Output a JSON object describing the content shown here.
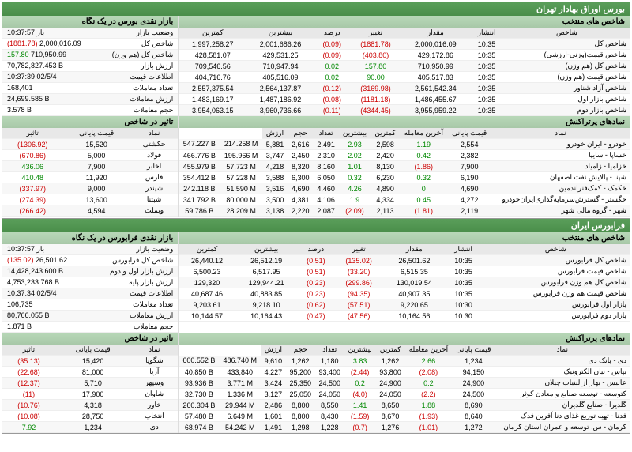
{
  "colors": {
    "headerBg": "#5a9e5a",
    "subHeaderBg": "#b8d8b8",
    "neg": "#cc0000",
    "pos": "#008800",
    "rowAlt": "#f7f7f7",
    "border": "#dddddd"
  },
  "tehran": {
    "title": "بورس اوراق بهادار تهران",
    "glance": {
      "header": "بازار نقدی بورس در یک نگاه",
      "rows": [
        {
          "k": "وضعیت بازار",
          "v": "باز 10:37:57"
        },
        {
          "k": "شاخص کل",
          "v": "2,000,016.09",
          "d": "(1881.78)",
          "neg": true
        },
        {
          "k": "شاخص کل (هم وزن)",
          "v": "710,950.99",
          "d": "157.80",
          "pos": true
        },
        {
          "k": "ارزش بازار",
          "v": "70,782,827.453 B"
        },
        {
          "k": "اطلاعات قیمت",
          "v": "10:37:39 02/5/4"
        },
        {
          "k": "تعداد معاملات",
          "v": "168,401"
        },
        {
          "k": "ارزش معاملات",
          "v": "24,699.585 B"
        },
        {
          "k": "حجم معاملات",
          "v": "3.578 B"
        }
      ]
    },
    "indices": {
      "header": "شاخص های منتخب",
      "cols": [
        "شاخص",
        "انتشار",
        "مقدار",
        "تغییر",
        "درصد",
        "بیشترین",
        "کمترین"
      ],
      "rows": [
        [
          "شاخص کل",
          "10:35",
          "2,000,016.09",
          "(1881.78)",
          "(0.09)",
          "2,001,686.26",
          "1,997,258.27",
          true
        ],
        [
          "شاخص قیمت(وزنی-ارزشی)",
          "10:35",
          "429,172.86",
          "(403.80)",
          "(0.09)",
          "429,531.25",
          "428,581.07",
          true
        ],
        [
          "شاخص کل (هم وزن)",
          "10:35",
          "710,950.99",
          "157.80",
          "0.02",
          "710,947.94",
          "709,546.56",
          false
        ],
        [
          "شاخص قیمت (هم وزن)",
          "10:35",
          "405,517.83",
          "90.00",
          "0.02",
          "405,516.09",
          "404,716.76",
          false
        ],
        [
          "شاخص آزاد شناور",
          "10:35",
          "2,561,542.34",
          "(3169.98)",
          "(0.12)",
          "2,564,137.87",
          "2,557,375.54",
          true
        ],
        [
          "شاخص بازار اول",
          "10:35",
          "1,486,455.67",
          "(1181.18)",
          "(0.08)",
          "1,487,186.92",
          "1,483,169.17",
          true
        ],
        [
          "شاخص بازار دوم",
          "10:35",
          "3,955,959.22",
          "(4344.45)",
          "(0.11)",
          "3,960,736.66",
          "3,954,063.15",
          true
        ]
      ]
    },
    "effect": {
      "header": "تاثیر در شاخص",
      "cols": [
        "نماد",
        "قیمت پایانی",
        "تاثیر"
      ],
      "rows": [
        [
          "حکشتی",
          "15,520",
          "(1306.92)",
          true
        ],
        [
          "فولاد",
          "5,000",
          "(670.86)",
          true
        ],
        [
          "اخابر",
          "7,900",
          "436.06",
          false
        ],
        [
          "فارس",
          "11,920",
          "410.48",
          false
        ],
        [
          "شپندر",
          "9,000",
          "(337.97)",
          true
        ],
        [
          "شبتنا",
          "13,600",
          "(274.39)",
          true
        ],
        [
          "وبملت",
          "4,594",
          "(266.42)",
          true
        ]
      ]
    },
    "top": {
      "header": "نمادهای پرتراکنش",
      "cols": [
        "نماد",
        "قیمت پایانی",
        "آخرین معامله",
        "کمترین",
        "بیشترین",
        "تعداد",
        "حجم",
        "ارزش"
      ],
      "rows": [
        [
          "خودرو - ایران خودرو",
          "2,554",
          "1.19",
          "2,598",
          "2.93",
          "2,491",
          "2,616",
          "5,881",
          "214.258 M",
          "547.227 B"
        ],
        [
          "خساپا - سایپا",
          "2,382",
          "0.42",
          "2,420",
          "2.02",
          "2,310",
          "2,450",
          "3,747",
          "195.966 M",
          "466.776 B"
        ],
        [
          "خزامیا - زامیاد",
          "7,900",
          "(1.86)",
          "8,130",
          "1.01",
          "8,160",
          "8,320",
          "4,218",
          "57.723 M",
          "455.979 B"
        ],
        [
          "شپنا - پالایش نفت اصفهان",
          "6,190",
          "0.32",
          "6,230",
          "0.32",
          "6,050",
          "6,300",
          "3,588",
          "57.228 M",
          "354.412 B"
        ],
        [
          "خکمک - کمک‌فنراندمین",
          "4,690",
          "0",
          "4,890",
          "4.26",
          "4,460",
          "4,690",
          "3,516",
          "51.590 M",
          "242.118 B"
        ],
        [
          "خگستر - گسترش‌سرمایه‌گذاری‌ایران‌خودرو",
          "4,272",
          "0.45",
          "4,334",
          "1.9",
          "4,106",
          "4,381",
          "3,500",
          "80.000 M",
          "341.792 B"
        ],
        [
          "شهر - گروه مالی شهر",
          "2,119",
          "(1.81)",
          "2,113",
          "(2.09)",
          "2,087",
          "2,220",
          "3,138",
          "28.209 M",
          "59.786 B"
        ]
      ]
    }
  },
  "iran": {
    "title": "فرابورس ایران",
    "glance": {
      "header": "بازار نقدی فرابورس در یک نگاه",
      "rows": [
        {
          "k": "وضعیت بازار",
          "v": "باز 10:37:57"
        },
        {
          "k": "شاخص کل فرابورس",
          "v": "26,501.62",
          "d": "(135.02)",
          "neg": true
        },
        {
          "k": "ارزش بازار اول و دوم",
          "v": "14,428,243.600 B"
        },
        {
          "k": "ارزش بازار پایه",
          "v": "4,753,233.768 B"
        },
        {
          "k": "اطلاعات قیمت",
          "v": "10:37:34 02/5/4"
        },
        {
          "k": "تعداد معاملات",
          "v": "106,735"
        },
        {
          "k": "ارزش معاملات",
          "v": "80,766.055 B"
        },
        {
          "k": "حجم معاملات",
          "v": "1.871 B"
        }
      ]
    },
    "indices": {
      "header": "شاخص های منتخب",
      "cols": [
        "شاخص",
        "انتشار",
        "مقدار",
        "تغییر",
        "درصد",
        "بیشترین",
        "کمترین"
      ],
      "rows": [
        [
          "شاخص کل فرابورس",
          "10:35",
          "26,501.62",
          "(135.02)",
          "(0.51)",
          "26,512.19",
          "26,440.12",
          true
        ],
        [
          "شاخص قیمت فرابورس",
          "10:35",
          "6,515.35",
          "(33.20)",
          "(0.51)",
          "6,517.95",
          "6,500.23",
          true
        ],
        [
          "شاخص کل هم وزن فرابورس",
          "10:35",
          "130,019.54",
          "(299.86)",
          "(0.23)",
          "129,944.21",
          "129,320",
          true
        ],
        [
          "شاخص قیمت هم وزن فرابورس",
          "10:35",
          "40,907.35",
          "(94.35)",
          "(0.23)",
          "40,883.85",
          "40,687.46",
          true
        ],
        [
          "بازار اول فرابورس",
          "10:30",
          "9,220.65",
          "(57.51)",
          "(0.62)",
          "9,218.10",
          "9,203.61",
          true
        ],
        [
          "بازار دوم فرابورس",
          "10:30",
          "10,164.56",
          "(47.56)",
          "(0.47)",
          "10,164.43",
          "10,144.57",
          true
        ]
      ]
    },
    "effect": {
      "header": "تاثیر در شاخص",
      "cols": [
        "نماد",
        "قیمت پایانی",
        "تاثیر"
      ],
      "rows": [
        [
          "شگویا",
          "15,420",
          "(35.13)",
          true
        ],
        [
          "آریا",
          "81,000",
          "(22.68)",
          true
        ],
        [
          "وسپهر",
          "5,710",
          "(12.37)",
          true
        ],
        [
          "شاوان",
          "17,900",
          "(11)",
          true
        ],
        [
          "خاور",
          "4,318",
          "(10.76)",
          true
        ],
        [
          "انتخاب",
          "28,750",
          "(10.08)",
          true
        ],
        [
          "دی",
          "1,234",
          "7.92",
          false
        ]
      ]
    },
    "top": {
      "header": "نمادهای پرتراکنش",
      "cols": [
        "نماد",
        "قیمت پایانی",
        "آخرین معامله",
        "کمترین",
        "بیشترین",
        "تعداد",
        "حجم",
        "ارزش"
      ],
      "rows": [
        [
          "دی - بانک دی",
          "1,234",
          "2.66",
          "1,262",
          "3.83",
          "1,180",
          "1,262",
          "9,610",
          "486.740 M",
          "600.552 B"
        ],
        [
          "بپاس - نیان الکترونیک",
          "94,150",
          "(2.08)",
          "93,800",
          "(2.44)",
          "93,400",
          "95,200",
          "4,227",
          "433,840",
          "40.850 B"
        ],
        [
          "عالیس - بهار از لبنیات چیلان",
          "24,900",
          "0.2",
          "24,900",
          "0.2",
          "24,500",
          "25,350",
          "3,424",
          "3.771 M",
          "93.936 B"
        ],
        [
          "کتوسعه - توسعه صنایع و معادن کوثر",
          "24,500",
          "(2.2)",
          "24,050",
          "(4.0)",
          "24,050",
          "25,050",
          "3,127",
          "1.336 M",
          "32.730 B"
        ],
        [
          "گلدیرا - صنایع گلدیران",
          "8,690",
          "1.88",
          "8,650",
          "1.41",
          "8,550",
          "8,800",
          "2,486",
          "29.944 M",
          "260.304 B"
        ],
        [
          "فدنا - تهیه توزیع غذای دنا آفرین فدک",
          "8,640",
          "(1.93)",
          "8,670",
          "(1.59)",
          "8,430",
          "8,800",
          "1,601",
          "6.649 M",
          "57.480 B"
        ],
        [
          "کرمان - س. توسعه و عمران استان کرمان",
          "1,272",
          "(1.01)",
          "1,276",
          "(0.7)",
          "1,228",
          "1,298",
          "1,491",
          "54.242 M",
          "68.974 B"
        ]
      ]
    }
  }
}
